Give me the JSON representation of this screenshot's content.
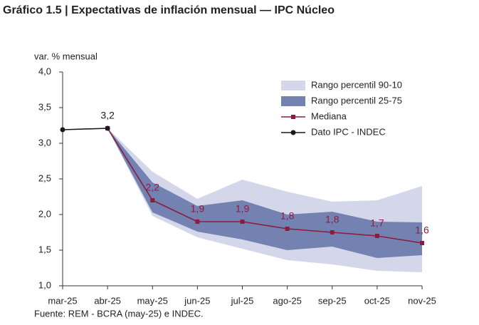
{
  "chart_data": {
    "type": "line",
    "title": "Gráfico 1.5 | Expectativas de inflación mensual — IPC Núcleo",
    "y_axis_label": "var. % mensual",
    "source": "Fuente: REM - BCRA (may-25) e INDEC.",
    "categories": [
      "mar-25",
      "abr-25",
      "may-25",
      "jun-25",
      "jul-25",
      "ago-25",
      "sep-25",
      "oct-25",
      "nov-25"
    ],
    "ylim": [
      1.0,
      4.0
    ],
    "yticks": [
      {
        "value": 1.0,
        "label": "1,0"
      },
      {
        "value": 1.5,
        "label": "1,5"
      },
      {
        "value": 2.0,
        "label": "2,0"
      },
      {
        "value": 2.5,
        "label": "2,5"
      },
      {
        "value": 3.0,
        "label": "3,0"
      },
      {
        "value": 3.5,
        "label": "3,5"
      },
      {
        "value": 4.0,
        "label": "4,0"
      }
    ],
    "legend": "upper right",
    "bands": [
      {
        "name": "Rango percentil 90-10",
        "color": "#d4d7e9",
        "upper": [
          null,
          3.21,
          2.6,
          2.22,
          2.49,
          2.32,
          2.18,
          2.2,
          2.4
        ],
        "lower": [
          null,
          3.21,
          1.98,
          1.68,
          1.52,
          1.36,
          1.3,
          1.21,
          1.19
        ]
      },
      {
        "name": "Rango percentil 25-75",
        "color": "#7482b2",
        "upper": [
          null,
          3.21,
          2.45,
          2.12,
          2.2,
          2.0,
          2.04,
          1.9,
          1.89
        ],
        "lower": [
          null,
          3.21,
          2.03,
          1.76,
          1.65,
          1.5,
          1.55,
          1.39,
          1.43
        ]
      }
    ],
    "series": [
      {
        "name": "Mediana",
        "color": "#8c1c3e",
        "marker": "square",
        "values": [
          null,
          3.21,
          2.2,
          1.9,
          1.9,
          1.8,
          1.75,
          1.7,
          1.6
        ],
        "value_labels": [
          null,
          null,
          "2,2",
          "1,9",
          "1,9",
          "1,8",
          "1,8",
          "1,7",
          "1,6"
        ]
      },
      {
        "name": "Dato IPC - INDEC",
        "color": "#1a1a1a",
        "marker": "circle",
        "values": [
          3.19,
          3.21,
          null,
          null,
          null,
          null,
          null,
          null,
          null
        ],
        "value_labels": [
          null,
          "3,2",
          null,
          null,
          null,
          null,
          null,
          null,
          null
        ]
      }
    ]
  }
}
